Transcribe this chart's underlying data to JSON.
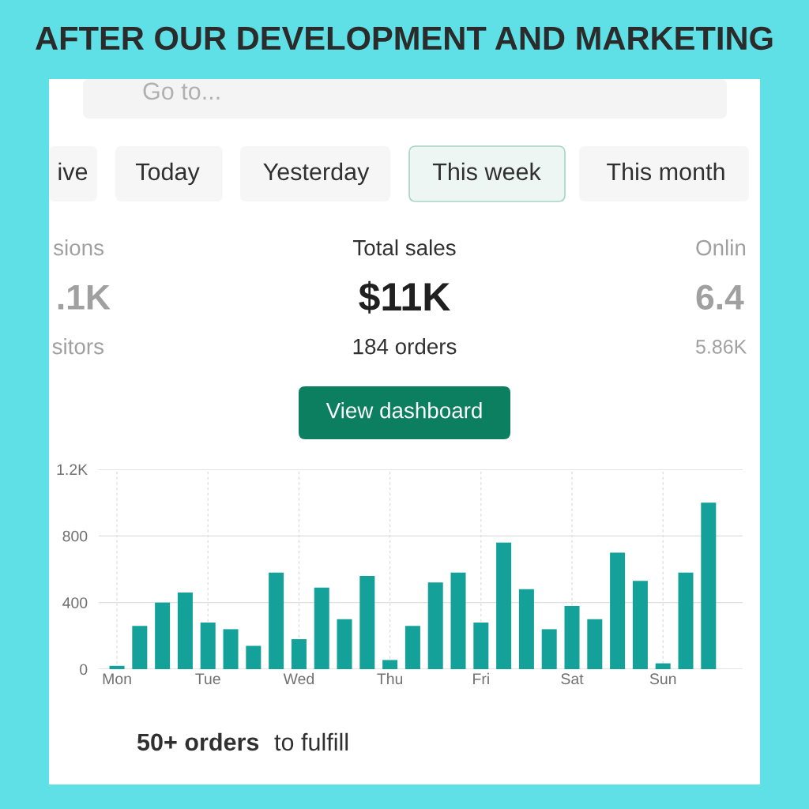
{
  "chart_data": {
    "type": "bar",
    "title": "AFTER OUR DEVELOPMENT AND MARKETING",
    "categories": [
      "Mon",
      null,
      null,
      null,
      "Tue",
      null,
      null,
      null,
      "Wed",
      null,
      null,
      null,
      "Thu",
      null,
      null,
      null,
      "Fri",
      null,
      null,
      null,
      "Sat",
      null,
      null,
      null,
      "Sun",
      null,
      null
    ],
    "values": [
      20,
      260,
      400,
      460,
      280,
      240,
      140,
      580,
      180,
      490,
      300,
      560,
      55,
      260,
      520,
      580,
      280,
      760,
      480,
      240,
      380,
      300,
      700,
      530,
      35,
      580,
      1000
    ],
    "color": "#14a19a",
    "ylim": [
      0,
      1200
    ],
    "yticks": [
      0,
      400,
      800,
      {
        "value": 1200,
        "label": "1.2K"
      }
    ],
    "grid": true,
    "annotations": [
      "Go to...",
      "ive",
      "Today",
      "Yesterday",
      "This week",
      "This month",
      "sions",
      ".1K",
      "sitors",
      "Total sales",
      "$11K",
      "184 orders",
      "View dashboard",
      "Onlin",
      "6.4",
      "5.86K",
      "50+ orders",
      "to fulfill"
    ]
  }
}
